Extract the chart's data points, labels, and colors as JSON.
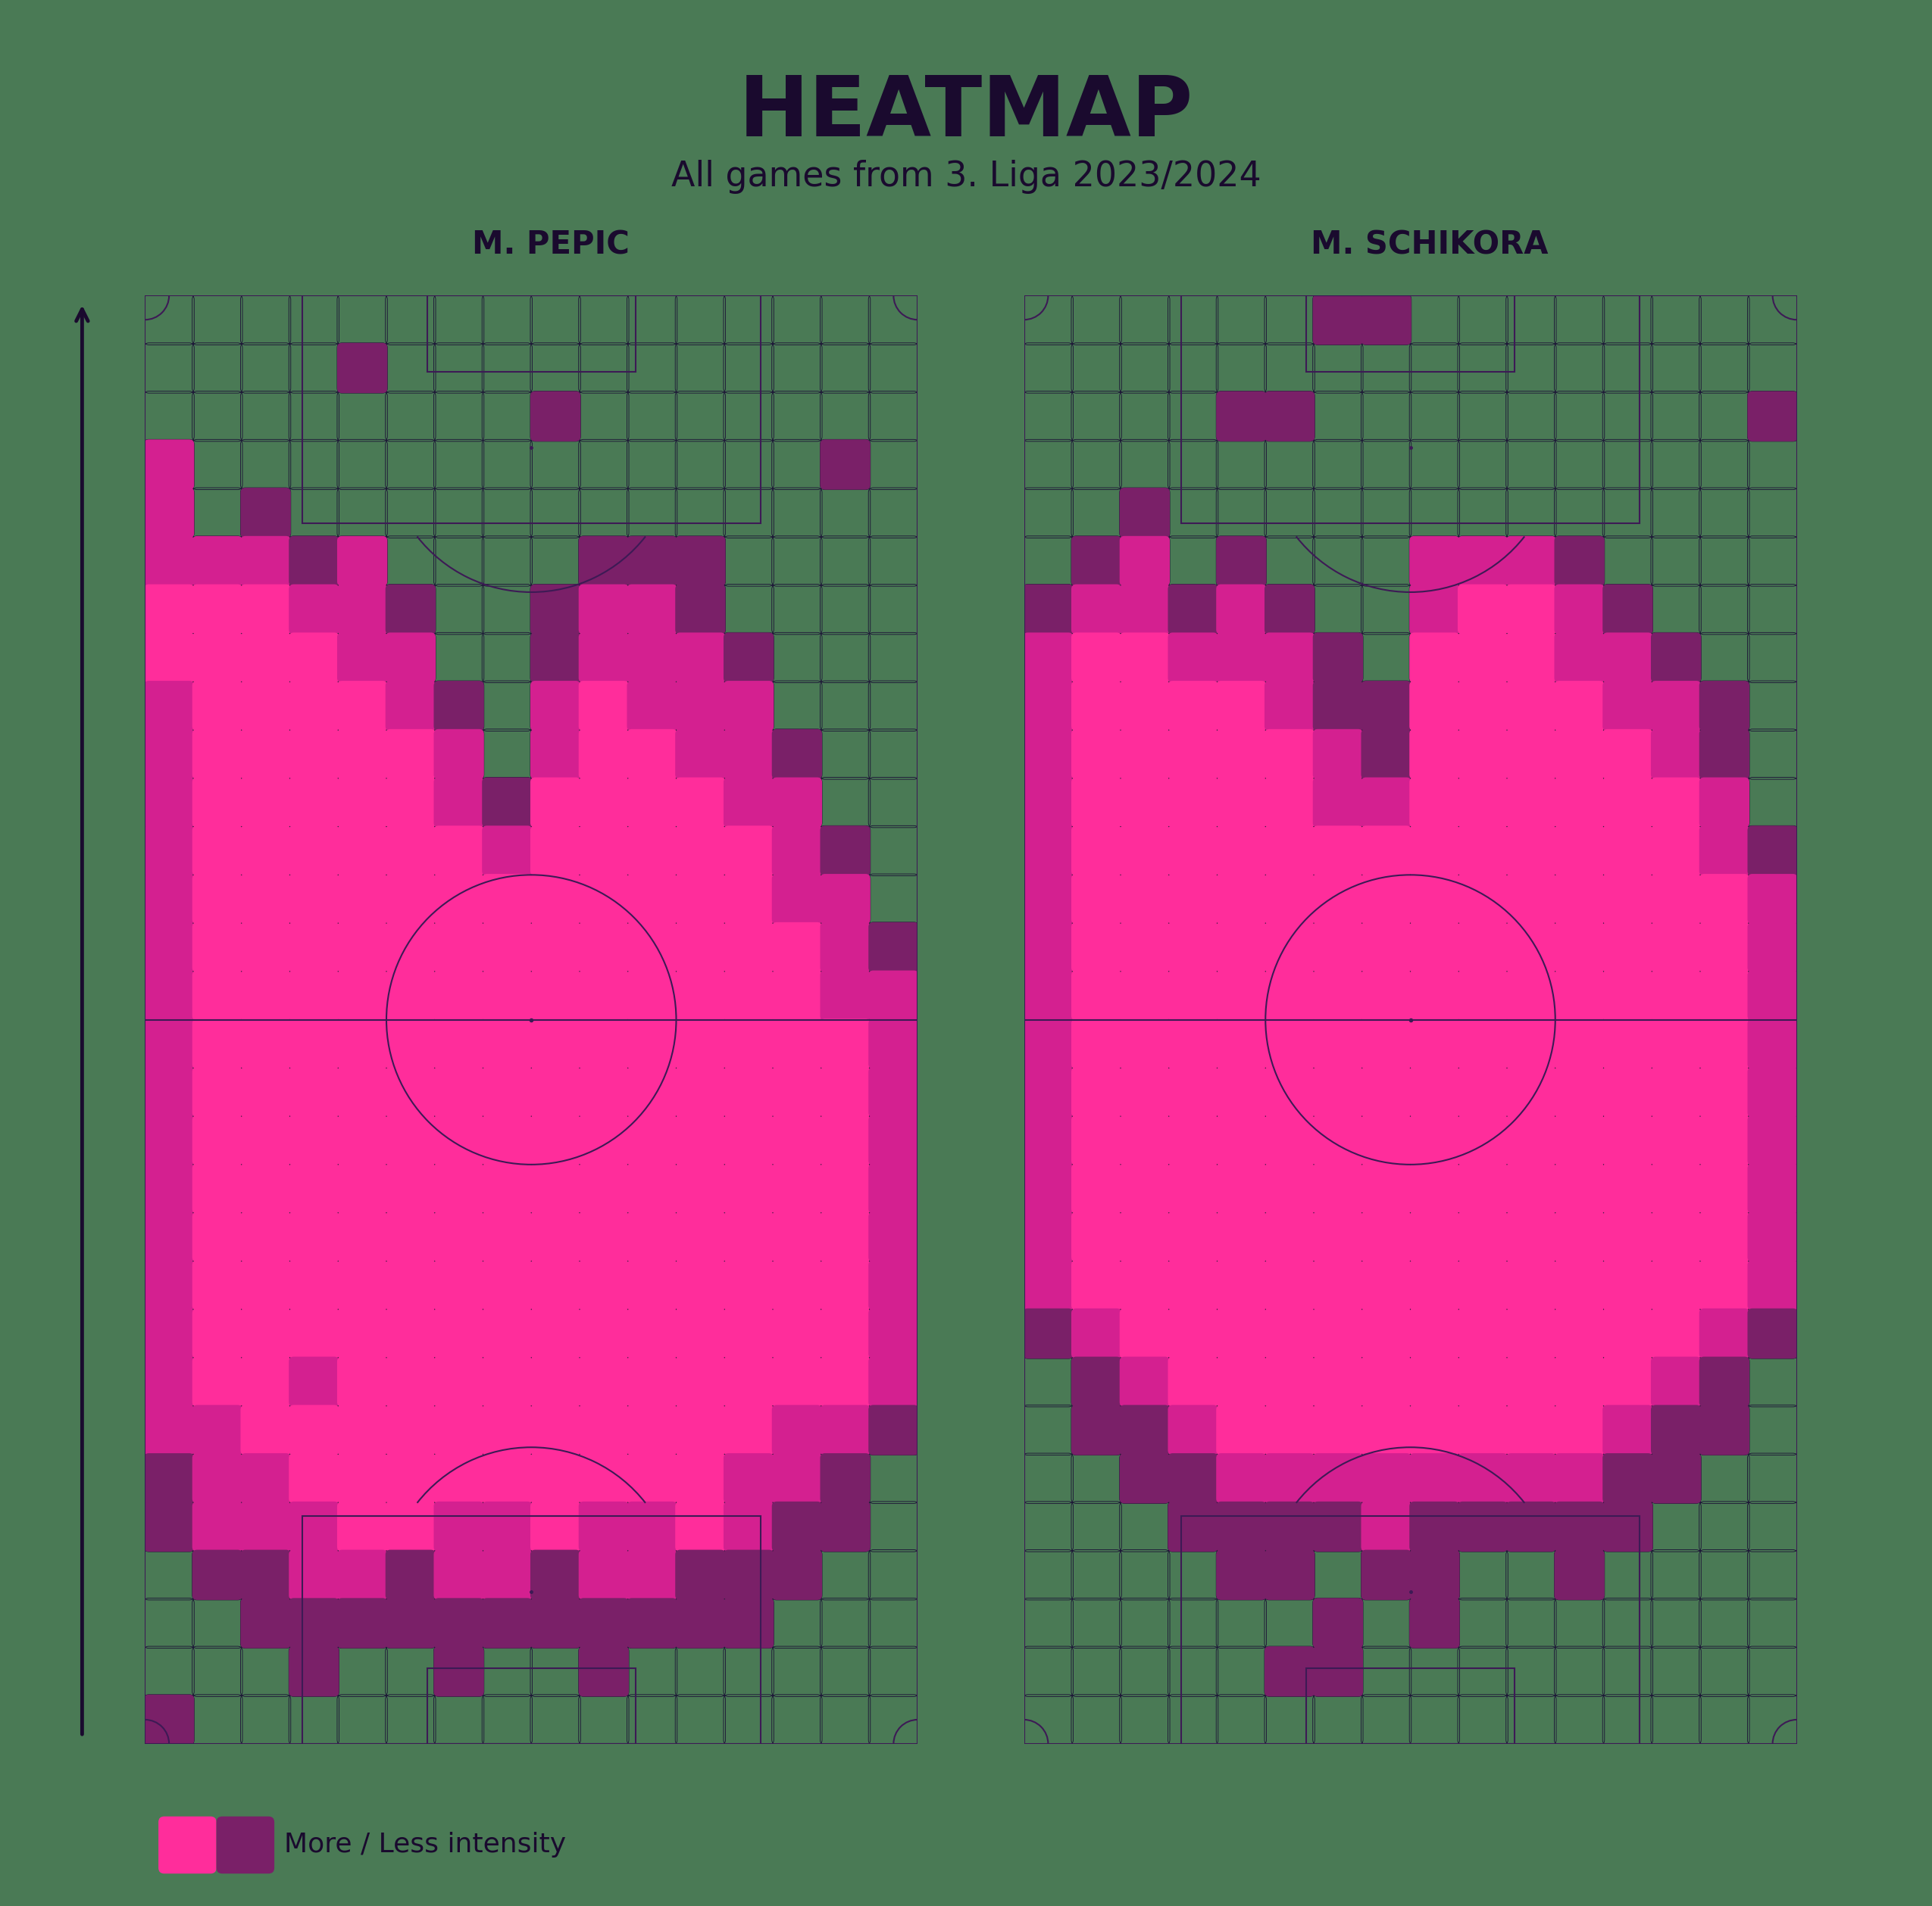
{
  "title": "HEATMAP",
  "subtitle": "All games from 3. Liga 2023/2024",
  "player1_name": "M. PEPIC",
  "player2_name": "M. SCHIKORA",
  "background_color": "#4a7a55",
  "pitch_bg": "#0c0920",
  "pitch_line_color": "#3d1a55",
  "ghost_color": "#1a0f35",
  "high_color": "#ff2d9b",
  "mid_color": "#d42090",
  "low_color": "#7a2068",
  "title_color": "#1a0a2e",
  "legend_text": "More / Less intensity",
  "grid_cols": 16,
  "grid_rows": 30,
  "pepic_heatmap": [
    [
      0,
      0,
      0,
      0,
      0,
      0,
      0,
      0,
      0,
      0,
      0,
      0,
      0,
      0,
      0,
      0
    ],
    [
      0,
      0,
      0,
      0,
      1,
      0,
      0,
      0,
      0,
      0,
      0,
      0,
      0,
      0,
      0,
      0
    ],
    [
      0,
      0,
      0,
      0,
      0,
      0,
      0,
      0,
      1,
      0,
      0,
      0,
      0,
      0,
      0,
      0
    ],
    [
      2,
      0,
      0,
      0,
      0,
      0,
      0,
      0,
      0,
      0,
      0,
      0,
      0,
      0,
      1,
      0
    ],
    [
      2,
      0,
      1,
      0,
      0,
      0,
      0,
      0,
      0,
      0,
      0,
      0,
      0,
      0,
      0,
      0
    ],
    [
      2,
      2,
      2,
      1,
      2,
      0,
      0,
      0,
      0,
      1,
      1,
      1,
      0,
      0,
      0,
      0
    ],
    [
      3,
      3,
      3,
      2,
      2,
      1,
      0,
      0,
      1,
      2,
      2,
      1,
      0,
      0,
      0,
      0
    ],
    [
      3,
      3,
      3,
      3,
      2,
      2,
      0,
      0,
      1,
      2,
      2,
      2,
      1,
      0,
      0,
      0
    ],
    [
      2,
      3,
      3,
      3,
      3,
      2,
      1,
      0,
      2,
      3,
      2,
      2,
      2,
      0,
      0,
      0
    ],
    [
      2,
      3,
      3,
      3,
      3,
      3,
      2,
      0,
      2,
      3,
      3,
      2,
      2,
      1,
      0,
      0
    ],
    [
      2,
      3,
      3,
      3,
      3,
      3,
      2,
      1,
      3,
      3,
      3,
      3,
      2,
      2,
      0,
      0
    ],
    [
      2,
      3,
      3,
      3,
      3,
      3,
      3,
      2,
      3,
      3,
      3,
      3,
      3,
      2,
      1,
      0
    ],
    [
      2,
      3,
      3,
      3,
      3,
      3,
      3,
      3,
      3,
      3,
      3,
      3,
      3,
      2,
      2,
      0
    ],
    [
      2,
      3,
      3,
      3,
      3,
      3,
      3,
      3,
      3,
      3,
      3,
      3,
      3,
      3,
      2,
      1
    ],
    [
      2,
      3,
      3,
      3,
      3,
      3,
      3,
      3,
      3,
      3,
      3,
      3,
      3,
      3,
      2,
      2
    ],
    [
      2,
      3,
      3,
      3,
      3,
      3,
      3,
      3,
      3,
      3,
      3,
      3,
      3,
      3,
      3,
      2
    ],
    [
      2,
      3,
      3,
      3,
      3,
      3,
      3,
      3,
      3,
      3,
      3,
      3,
      3,
      3,
      3,
      2
    ],
    [
      2,
      3,
      3,
      3,
      3,
      3,
      3,
      3,
      3,
      3,
      3,
      3,
      3,
      3,
      3,
      2
    ],
    [
      2,
      3,
      3,
      3,
      3,
      3,
      3,
      3,
      3,
      3,
      3,
      3,
      3,
      3,
      3,
      2
    ],
    [
      2,
      3,
      3,
      3,
      3,
      3,
      3,
      3,
      3,
      3,
      3,
      3,
      3,
      3,
      3,
      2
    ],
    [
      2,
      3,
      3,
      3,
      3,
      3,
      3,
      3,
      3,
      3,
      3,
      3,
      3,
      3,
      3,
      2
    ],
    [
      2,
      3,
      3,
      3,
      3,
      3,
      3,
      3,
      3,
      3,
      3,
      3,
      3,
      3,
      3,
      2
    ],
    [
      2,
      3,
      3,
      2,
      3,
      3,
      3,
      3,
      3,
      3,
      3,
      3,
      3,
      3,
      3,
      2
    ],
    [
      2,
      2,
      3,
      3,
      3,
      3,
      3,
      3,
      3,
      3,
      3,
      3,
      3,
      2,
      2,
      1
    ],
    [
      1,
      2,
      2,
      3,
      3,
      3,
      3,
      3,
      3,
      3,
      3,
      3,
      2,
      2,
      1,
      0
    ],
    [
      1,
      2,
      2,
      2,
      3,
      3,
      2,
      2,
      3,
      2,
      2,
      3,
      2,
      1,
      1,
      0
    ],
    [
      0,
      1,
      1,
      2,
      2,
      1,
      2,
      2,
      1,
      2,
      2,
      1,
      1,
      1,
      0,
      0
    ],
    [
      0,
      0,
      1,
      1,
      1,
      1,
      1,
      1,
      1,
      1,
      1,
      1,
      1,
      0,
      0,
      0
    ],
    [
      0,
      0,
      0,
      1,
      0,
      0,
      1,
      0,
      0,
      1,
      0,
      0,
      0,
      0,
      0,
      0
    ],
    [
      1,
      0,
      0,
      0,
      0,
      0,
      0,
      0,
      0,
      0,
      0,
      0,
      0,
      0,
      0,
      0
    ]
  ],
  "schikora_heatmap": [
    [
      0,
      0,
      0,
      0,
      0,
      0,
      1,
      1,
      0,
      0,
      0,
      0,
      0,
      0,
      0,
      0
    ],
    [
      0,
      0,
      0,
      0,
      0,
      0,
      0,
      0,
      0,
      0,
      0,
      0,
      0,
      0,
      0,
      0
    ],
    [
      0,
      0,
      0,
      0,
      1,
      1,
      0,
      0,
      0,
      0,
      0,
      0,
      0,
      0,
      0,
      1
    ],
    [
      0,
      0,
      0,
      0,
      0,
      0,
      0,
      0,
      0,
      0,
      0,
      0,
      0,
      0,
      0,
      0
    ],
    [
      0,
      0,
      1,
      0,
      0,
      0,
      0,
      0,
      0,
      0,
      0,
      0,
      0,
      0,
      0,
      0
    ],
    [
      0,
      1,
      2,
      0,
      1,
      0,
      0,
      0,
      2,
      2,
      2,
      1,
      0,
      0,
      0,
      0
    ],
    [
      1,
      2,
      2,
      1,
      2,
      1,
      0,
      0,
      2,
      3,
      3,
      2,
      1,
      0,
      0,
      0
    ],
    [
      2,
      3,
      3,
      2,
      2,
      2,
      1,
      0,
      3,
      3,
      3,
      2,
      2,
      1,
      0,
      0
    ],
    [
      2,
      3,
      3,
      3,
      3,
      2,
      1,
      1,
      3,
      3,
      3,
      3,
      2,
      2,
      1,
      0
    ],
    [
      2,
      3,
      3,
      3,
      3,
      3,
      2,
      1,
      3,
      3,
      3,
      3,
      3,
      2,
      1,
      0
    ],
    [
      2,
      3,
      3,
      3,
      3,
      3,
      2,
      2,
      3,
      3,
      3,
      3,
      3,
      3,
      2,
      0
    ],
    [
      2,
      3,
      3,
      3,
      3,
      3,
      3,
      3,
      3,
      3,
      3,
      3,
      3,
      3,
      2,
      1
    ],
    [
      2,
      3,
      3,
      3,
      3,
      3,
      3,
      3,
      3,
      3,
      3,
      3,
      3,
      3,
      3,
      2
    ],
    [
      2,
      3,
      3,
      3,
      3,
      3,
      3,
      3,
      3,
      3,
      3,
      3,
      3,
      3,
      3,
      2
    ],
    [
      2,
      3,
      3,
      3,
      3,
      3,
      3,
      3,
      3,
      3,
      3,
      3,
      3,
      3,
      3,
      2
    ],
    [
      2,
      3,
      3,
      3,
      3,
      3,
      3,
      3,
      3,
      3,
      3,
      3,
      3,
      3,
      3,
      2
    ],
    [
      2,
      3,
      3,
      3,
      3,
      3,
      3,
      3,
      3,
      3,
      3,
      3,
      3,
      3,
      3,
      2
    ],
    [
      2,
      3,
      3,
      3,
      3,
      3,
      3,
      3,
      3,
      3,
      3,
      3,
      3,
      3,
      3,
      2
    ],
    [
      2,
      3,
      3,
      3,
      3,
      3,
      3,
      3,
      3,
      3,
      3,
      3,
      3,
      3,
      3,
      2
    ],
    [
      2,
      3,
      3,
      3,
      3,
      3,
      3,
      3,
      3,
      3,
      3,
      3,
      3,
      3,
      3,
      2
    ],
    [
      2,
      3,
      3,
      3,
      3,
      3,
      3,
      3,
      3,
      3,
      3,
      3,
      3,
      3,
      3,
      2
    ],
    [
      1,
      2,
      3,
      3,
      3,
      3,
      3,
      3,
      3,
      3,
      3,
      3,
      3,
      3,
      2,
      1
    ],
    [
      0,
      1,
      2,
      3,
      3,
      3,
      3,
      3,
      3,
      3,
      3,
      3,
      3,
      2,
      1,
      0
    ],
    [
      0,
      1,
      1,
      2,
      3,
      3,
      3,
      3,
      3,
      3,
      3,
      3,
      2,
      1,
      1,
      0
    ],
    [
      0,
      0,
      1,
      1,
      2,
      2,
      2,
      2,
      2,
      2,
      2,
      2,
      1,
      1,
      0,
      0
    ],
    [
      0,
      0,
      0,
      1,
      1,
      1,
      1,
      2,
      1,
      1,
      1,
      1,
      1,
      0,
      0,
      0
    ],
    [
      0,
      0,
      0,
      0,
      1,
      1,
      0,
      1,
      1,
      0,
      0,
      1,
      0,
      0,
      0,
      0
    ],
    [
      0,
      0,
      0,
      0,
      0,
      0,
      1,
      0,
      1,
      0,
      0,
      0,
      0,
      0,
      0,
      0
    ],
    [
      0,
      0,
      0,
      0,
      0,
      1,
      1,
      0,
      0,
      0,
      0,
      0,
      0,
      0,
      0,
      0
    ],
    [
      0,
      0,
      0,
      0,
      0,
      0,
      0,
      0,
      0,
      0,
      0,
      0,
      0,
      0,
      0,
      0
    ]
  ]
}
